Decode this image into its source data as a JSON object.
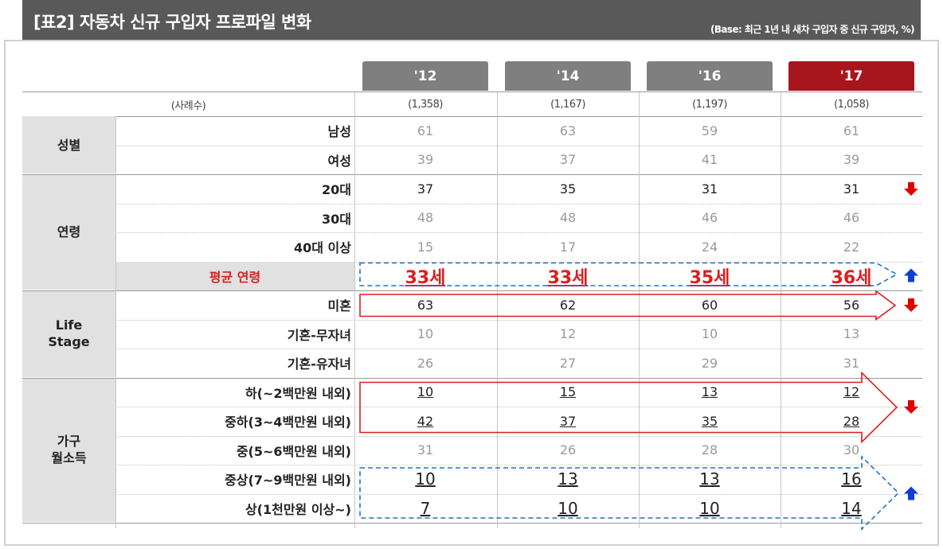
{
  "header": {
    "title": "[표2] 자동차 신규 구입자 프로파일 변화",
    "base_note": "(Base: 최근 1년 내 새차 구입자 중 신규 구입자, %)"
  },
  "years": [
    "'12",
    "'14",
    "'16",
    "'17"
  ],
  "sample": {
    "label": "(사례수)",
    "values": [
      "(1,358)",
      "(1,167)",
      "(1,197)",
      "(1,058)"
    ]
  },
  "groups": {
    "gender": "성별",
    "age": "연령",
    "life_stage": "Life\nStage",
    "income": "가구\n월소득"
  },
  "rows": [
    {
      "label": "남성",
      "values": [
        "61",
        "63",
        "59",
        "61"
      ]
    },
    {
      "label": "여성",
      "values": [
        "39",
        "37",
        "41",
        "39"
      ]
    },
    {
      "label": "20대",
      "values": [
        "37",
        "35",
        "31",
        "31"
      ]
    },
    {
      "label": "30대",
      "values": [
        "48",
        "48",
        "46",
        "46"
      ]
    },
    {
      "label": "40대 이상",
      "values": [
        "15",
        "17",
        "24",
        "22"
      ]
    },
    {
      "label": "평균 연령",
      "values": [
        "33세",
        "33세",
        "35세",
        "36세"
      ]
    },
    {
      "label": "미혼",
      "values": [
        "63",
        "62",
        "60",
        "56"
      ]
    },
    {
      "label": "기혼-무자녀",
      "values": [
        "10",
        "12",
        "10",
        "13"
      ]
    },
    {
      "label": "기혼-유자녀",
      "values": [
        "26",
        "27",
        "29",
        "31"
      ]
    },
    {
      "label": "하(~2백만원 내외)",
      "values": [
        "10",
        "15",
        "13",
        "12"
      ]
    },
    {
      "label": "중하(3~4백만원 내외)",
      "values": [
        "42",
        "37",
        "35",
        "28"
      ]
    },
    {
      "label": "중(5~6백만원 내외)",
      "values": [
        "31",
        "26",
        "28",
        "30"
      ]
    },
    {
      "label": "중상(7~9백만원 내외)",
      "values": [
        "10",
        "13",
        "13",
        "16"
      ]
    },
    {
      "label": "상(1천만원 이상~)",
      "values": [
        "7",
        "10",
        "10",
        "14"
      ]
    }
  ],
  "trends": {
    "age_20s": "down",
    "avg_age": "up",
    "single": "down",
    "low_income": "down",
    "high_income": "up"
  },
  "colors": {
    "title_bg": "#595959",
    "year_header": "#7f7f7f",
    "latest_year_header": "#a6161c",
    "group_bg": "#e1e1e1",
    "highlight_red": "#dd1e1e",
    "trend_up": "#0d3fd6",
    "trend_down": "#e00000",
    "dashed_box": "#1e73c8"
  }
}
